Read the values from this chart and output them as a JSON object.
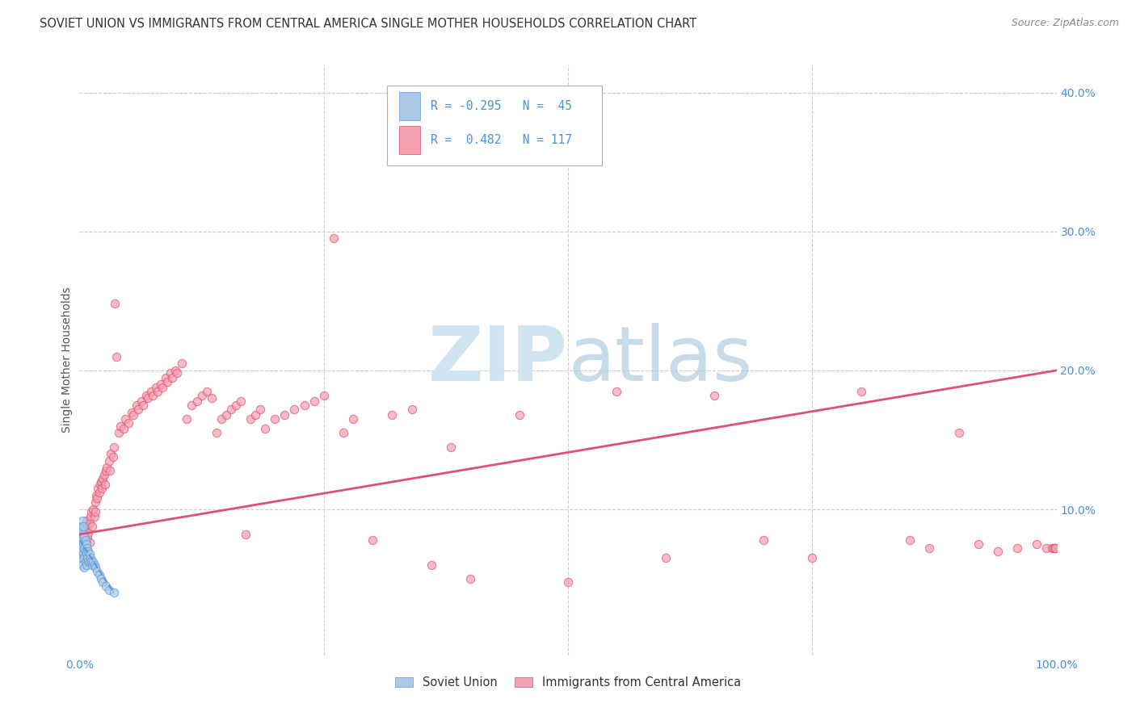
{
  "title": "SOVIET UNION VS IMMIGRANTS FROM CENTRAL AMERICA SINGLE MOTHER HOUSEHOLDS CORRELATION CHART",
  "source": "Source: ZipAtlas.com",
  "ylabel": "Single Mother Households",
  "xlim": [
    0,
    1.0
  ],
  "ylim": [
    -0.005,
    0.42
  ],
  "legend_blue_R": "-0.295",
  "legend_blue_N": "45",
  "legend_pink_R": "0.482",
  "legend_pink_N": "117",
  "blue_fill_color": "#aec9e8",
  "blue_edge_color": "#5b9bd5",
  "pink_fill_color": "#f4a0b0",
  "pink_edge_color": "#e05070",
  "pink_line_color": "#e05070",
  "blue_line_color": "#5b9bd5",
  "legend_label_blue": "Soviet Union",
  "legend_label_pink": "Immigrants from Central America",
  "background_color": "#ffffff",
  "grid_color": "#cccccc",
  "tick_color": "#4a90d9",
  "title_color": "#333333",
  "watermark_color": "#d0e4f0",
  "pink_x": [
    0.003,
    0.004,
    0.005,
    0.005,
    0.006,
    0.007,
    0.007,
    0.008,
    0.008,
    0.009,
    0.01,
    0.01,
    0.011,
    0.012,
    0.013,
    0.014,
    0.015,
    0.016,
    0.016,
    0.017,
    0.018,
    0.019,
    0.02,
    0.021,
    0.022,
    0.023,
    0.024,
    0.025,
    0.026,
    0.027,
    0.028,
    0.03,
    0.031,
    0.032,
    0.034,
    0.035,
    0.036,
    0.038,
    0.04,
    0.042,
    0.045,
    0.047,
    0.05,
    0.053,
    0.055,
    0.058,
    0.06,
    0.063,
    0.065,
    0.068,
    0.07,
    0.073,
    0.075,
    0.078,
    0.08,
    0.083,
    0.085,
    0.088,
    0.09,
    0.093,
    0.095,
    0.098,
    0.1,
    0.105,
    0.11,
    0.115,
    0.12,
    0.125,
    0.13,
    0.135,
    0.14,
    0.145,
    0.15,
    0.155,
    0.16,
    0.165,
    0.17,
    0.175,
    0.18,
    0.185,
    0.19,
    0.2,
    0.21,
    0.22,
    0.23,
    0.24,
    0.25,
    0.26,
    0.27,
    0.28,
    0.3,
    0.32,
    0.34,
    0.36,
    0.38,
    0.4,
    0.45,
    0.5,
    0.55,
    0.6,
    0.65,
    0.7,
    0.75,
    0.8,
    0.85,
    0.87,
    0.9,
    0.92,
    0.94,
    0.96,
    0.98,
    0.99,
    0.995,
    0.997,
    0.999,
    0.999,
    0.999
  ],
  "pink_y": [
    0.082,
    0.075,
    0.085,
    0.07,
    0.088,
    0.078,
    0.092,
    0.08,
    0.088,
    0.083,
    0.09,
    0.076,
    0.095,
    0.098,
    0.088,
    0.1,
    0.095,
    0.105,
    0.098,
    0.11,
    0.108,
    0.115,
    0.112,
    0.118,
    0.12,
    0.115,
    0.122,
    0.125,
    0.118,
    0.128,
    0.13,
    0.135,
    0.128,
    0.14,
    0.138,
    0.145,
    0.248,
    0.21,
    0.155,
    0.16,
    0.158,
    0.165,
    0.162,
    0.17,
    0.168,
    0.175,
    0.172,
    0.178,
    0.175,
    0.182,
    0.18,
    0.185,
    0.182,
    0.188,
    0.185,
    0.19,
    0.188,
    0.195,
    0.192,
    0.198,
    0.195,
    0.2,
    0.198,
    0.205,
    0.165,
    0.175,
    0.178,
    0.182,
    0.185,
    0.18,
    0.155,
    0.165,
    0.168,
    0.172,
    0.175,
    0.178,
    0.082,
    0.165,
    0.168,
    0.172,
    0.158,
    0.165,
    0.168,
    0.172,
    0.175,
    0.178,
    0.182,
    0.295,
    0.155,
    0.165,
    0.078,
    0.168,
    0.172,
    0.06,
    0.145,
    0.05,
    0.168,
    0.048,
    0.185,
    0.065,
    0.182,
    0.078,
    0.065,
    0.185,
    0.078,
    0.072,
    0.155,
    0.075,
    0.07,
    0.072,
    0.075,
    0.072,
    0.072,
    0.072,
    0.072,
    0.072,
    0.072
  ],
  "blue_x": [
    0.001,
    0.001,
    0.001,
    0.002,
    0.002,
    0.002,
    0.002,
    0.003,
    0.003,
    0.003,
    0.003,
    0.003,
    0.004,
    0.004,
    0.004,
    0.004,
    0.005,
    0.005,
    0.005,
    0.005,
    0.006,
    0.006,
    0.006,
    0.007,
    0.007,
    0.007,
    0.008,
    0.008,
    0.009,
    0.009,
    0.01,
    0.01,
    0.011,
    0.012,
    0.013,
    0.014,
    0.015,
    0.016,
    0.018,
    0.02,
    0.022,
    0.024,
    0.027,
    0.03,
    0.035
  ],
  "blue_y": [
    0.075,
    0.068,
    0.082,
    0.08,
    0.072,
    0.088,
    0.065,
    0.085,
    0.078,
    0.092,
    0.07,
    0.06,
    0.082,
    0.075,
    0.068,
    0.088,
    0.08,
    0.072,
    0.065,
    0.058,
    0.078,
    0.07,
    0.062,
    0.075,
    0.068,
    0.06,
    0.072,
    0.065,
    0.07,
    0.063,
    0.068,
    0.062,
    0.065,
    0.063,
    0.06,
    0.062,
    0.06,
    0.058,
    0.055,
    0.053,
    0.05,
    0.048,
    0.045,
    0.042,
    0.04
  ],
  "pink_line_x0": 0.0,
  "pink_line_x1": 1.0,
  "pink_line_y0": 0.082,
  "pink_line_y1": 0.2,
  "blue_line_x0": 0.0,
  "blue_line_x1": 0.035,
  "blue_line_y0": 0.078,
  "blue_line_y1": 0.04
}
